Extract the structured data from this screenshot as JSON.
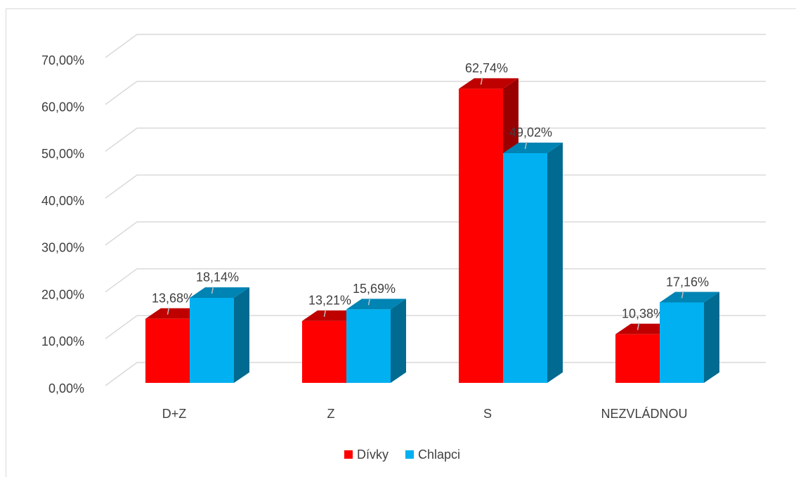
{
  "chart_data": {
    "type": "bar3d",
    "categories": [
      "D+Z",
      "Z",
      "S",
      "NEZVLÁDNOU"
    ],
    "series": [
      {
        "name": "Dívky",
        "color": "#ff0000",
        "values": [
          13.68,
          13.21,
          62.74,
          10.38
        ],
        "value_labels": [
          "13,68%",
          "13,21%",
          "62,74%",
          "10,38%"
        ]
      },
      {
        "name": "Chlapci",
        "color": "#00b0f0",
        "values": [
          18.14,
          15.69,
          49.02,
          17.16
        ],
        "value_labels": [
          "18,14%",
          "15,69%",
          "49,02%",
          "17,16%"
        ]
      }
    ],
    "ylim": [
      0,
      70
    ],
    "yticks": [
      {
        "value": 0,
        "label": "0,00%"
      },
      {
        "value": 10,
        "label": "10,00%"
      },
      {
        "value": 20,
        "label": "20,00%"
      },
      {
        "value": 30,
        "label": "30,00%"
      },
      {
        "value": 40,
        "label": "40,00%"
      },
      {
        "value": 50,
        "label": "50,00%"
      },
      {
        "value": 60,
        "label": "60,00%"
      },
      {
        "value": 70,
        "label": "70,00%"
      }
    ],
    "grid": true,
    "legend": "bottom"
  }
}
